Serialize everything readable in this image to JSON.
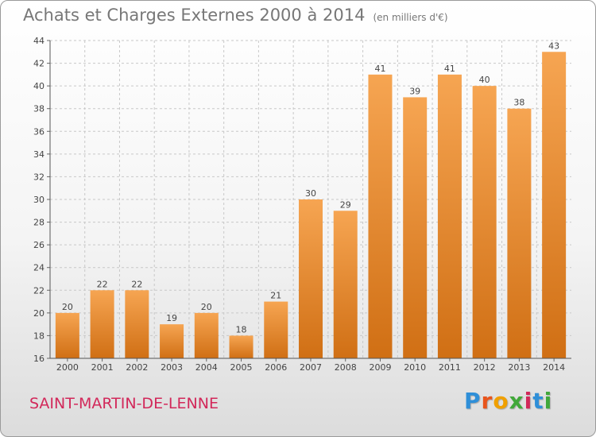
{
  "chart_data": {
    "type": "bar",
    "title": "Achats et Charges Externes 2000 à 2014",
    "unit": "(en milliers d'€)",
    "categories": [
      "2000",
      "2001",
      "2002",
      "2003",
      "2004",
      "2005",
      "2006",
      "2007",
      "2008",
      "2009",
      "2010",
      "2011",
      "2012",
      "2013",
      "2014"
    ],
    "values": [
      20,
      22,
      22,
      19,
      20,
      18,
      21,
      30,
      29,
      41,
      39,
      41,
      40,
      38,
      43
    ],
    "ylim": [
      16,
      44
    ],
    "yticks": [
      16,
      18,
      20,
      22,
      24,
      26,
      28,
      30,
      32,
      34,
      36,
      38,
      40,
      42,
      44
    ],
    "grid": true,
    "bar_color": "#f0922e"
  },
  "footer": {
    "commune": "SAINT-MARTIN-DE-LENNE",
    "logo": "Proxiti"
  }
}
